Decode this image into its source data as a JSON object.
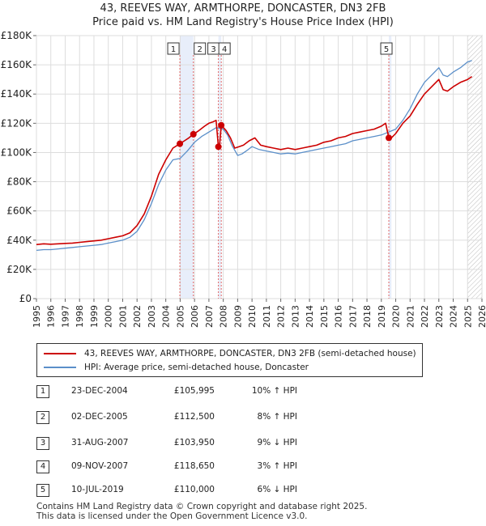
{
  "chart_data": {
    "type": "line",
    "title": "43, REEVES WAY, ARMTHORPE, DONCASTER, DN3 2FB",
    "subtitle": "Price paid vs. HM Land Registry's House Price Index (HPI)",
    "xlabel": "",
    "ylabel": "",
    "xlim": [
      1995,
      2026
    ],
    "ylim": [
      0,
      180000
    ],
    "y_ticks": [
      {
        "value": 0,
        "label": "£0"
      },
      {
        "value": 20000,
        "label": "£20K"
      },
      {
        "value": 40000,
        "label": "£40K"
      },
      {
        "value": 60000,
        "label": "£60K"
      },
      {
        "value": 80000,
        "label": "£80K"
      },
      {
        "value": 100000,
        "label": "£100K"
      },
      {
        "value": 120000,
        "label": "£120K"
      },
      {
        "value": 140000,
        "label": "£140K"
      },
      {
        "value": 160000,
        "label": "£160K"
      },
      {
        "value": 180000,
        "label": "£180K"
      }
    ],
    "x_ticks": [
      "1995",
      "1996",
      "1997",
      "1998",
      "1999",
      "2000",
      "2001",
      "2002",
      "2003",
      "2004",
      "2005",
      "2006",
      "2007",
      "2008",
      "2009",
      "2010",
      "2011",
      "2012",
      "2013",
      "2014",
      "2015",
      "2016",
      "2017",
      "2018",
      "2019",
      "2020",
      "2021",
      "2022",
      "2023",
      "2024",
      "2025",
      "2026"
    ],
    "grid": true,
    "shaded_regions": [
      [
        2004.98,
        2005.92
      ],
      [
        2007.66,
        2007.86
      ],
      [
        2019.52,
        2019.7
      ]
    ],
    "hatched_region": [
      2025.0,
      2026
    ],
    "series": [
      {
        "name": "43, REEVES WAY, ARMTHORPE, DONCASTER, DN3 2FB (semi-detached house)",
        "color": "#cc0000",
        "x": [
          1995.0,
          1995.5,
          1996.0,
          1996.5,
          1997.0,
          1997.5,
          1998.0,
          1998.5,
          1999.0,
          1999.5,
          2000.0,
          2000.5,
          2001.0,
          2001.5,
          2002.0,
          2002.5,
          2003.0,
          2003.5,
          2004.0,
          2004.5,
          2004.98,
          2005.3,
          2005.6,
          2005.92,
          2006.3,
          2006.7,
          2007.0,
          2007.3,
          2007.5,
          2007.66,
          2007.75,
          2007.86,
          2008.2,
          2008.5,
          2008.8,
          2009.1,
          2009.4,
          2009.8,
          2010.2,
          2010.6,
          2011.0,
          2011.5,
          2012.0,
          2012.5,
          2013.0,
          2013.5,
          2014.0,
          2014.5,
          2015.0,
          2015.5,
          2016.0,
          2016.5,
          2017.0,
          2017.5,
          2018.0,
          2018.5,
          2019.0,
          2019.3,
          2019.52,
          2019.7,
          2020.0,
          2020.5,
          2021.0,
          2021.5,
          2022.0,
          2022.5,
          2023.0,
          2023.3,
          2023.6,
          2024.0,
          2024.5,
          2025.0,
          2025.3
        ],
        "values": [
          37000,
          37500,
          37200,
          37500,
          37800,
          38000,
          38500,
          39000,
          39500,
          40000,
          41000,
          42000,
          43000,
          45000,
          50000,
          58000,
          70000,
          85000,
          95000,
          103000,
          105995,
          108000,
          110000,
          112500,
          115000,
          118000,
          120000,
          121000,
          122000,
          103950,
          106000,
          118650,
          115000,
          110000,
          103000,
          104000,
          105000,
          108000,
          110000,
          105000,
          104000,
          103000,
          102000,
          103000,
          102000,
          103000,
          104000,
          105000,
          107000,
          108000,
          110000,
          111000,
          113000,
          114000,
          115000,
          116000,
          118000,
          120000,
          110000,
          110000,
          113000,
          120000,
          125000,
          133000,
          140000,
          145000,
          150000,
          143000,
          142000,
          145000,
          148000,
          150000,
          152000
        ]
      },
      {
        "name": "HPI: Average price, semi-detached house, Doncaster",
        "color": "#5b8fc9",
        "x": [
          1995.0,
          1995.5,
          1996.0,
          1996.5,
          1997.0,
          1997.5,
          1998.0,
          1998.5,
          1999.0,
          1999.5,
          2000.0,
          2000.5,
          2001.0,
          2001.5,
          2002.0,
          2002.5,
          2003.0,
          2003.5,
          2004.0,
          2004.5,
          2005.0,
          2005.5,
          2006.0,
          2006.5,
          2007.0,
          2007.5,
          2008.0,
          2008.3,
          2008.6,
          2009.0,
          2009.3,
          2009.6,
          2010.0,
          2010.5,
          2011.0,
          2011.5,
          2012.0,
          2012.5,
          2013.0,
          2013.5,
          2014.0,
          2014.5,
          2015.0,
          2015.5,
          2016.0,
          2016.5,
          2017.0,
          2017.5,
          2018.0,
          2018.5,
          2019.0,
          2019.5,
          2020.0,
          2020.5,
          2021.0,
          2021.5,
          2022.0,
          2022.5,
          2023.0,
          2023.3,
          2023.6,
          2024.0,
          2024.5,
          2025.0,
          2025.3
        ],
        "values": [
          33000,
          33500,
          33500,
          34000,
          34500,
          35000,
          35500,
          36000,
          36500,
          37000,
          38000,
          39000,
          40000,
          42000,
          46000,
          54000,
          65000,
          78000,
          88000,
          95000,
          96000,
          101000,
          107000,
          111000,
          114000,
          117000,
          116000,
          112000,
          105000,
          98000,
          99000,
          101000,
          104000,
          102000,
          101000,
          100000,
          99000,
          99500,
          99000,
          100000,
          101000,
          102000,
          103000,
          104000,
          105000,
          106000,
          108000,
          109000,
          110000,
          111000,
          112000,
          114000,
          116000,
          122000,
          130000,
          140000,
          148000,
          153000,
          158000,
          153000,
          152000,
          155000,
          158000,
          162000,
          163000
        ]
      }
    ],
    "sales": [
      {
        "n": "1",
        "x": 2004.98,
        "value": 105995
      },
      {
        "n": "2",
        "x": 2005.92,
        "value": 112500
      },
      {
        "n": "3",
        "x": 2007.66,
        "value": 103950
      },
      {
        "n": "4",
        "x": 2007.86,
        "value": 118650
      },
      {
        "n": "5",
        "x": 2019.52,
        "value": 110000
      }
    ]
  },
  "legend": {
    "property_label": "43, REEVES WAY, ARMTHORPE, DONCASTER, DN3 2FB (semi-detached house)",
    "hpi_label": "HPI: Average price, semi-detached house, Doncaster"
  },
  "transactions": [
    {
      "n": "1",
      "date": "23-DEC-2004",
      "price": "£105,995",
      "hpi": "10% ↑ HPI"
    },
    {
      "n": "2",
      "date": "02-DEC-2005",
      "price": "£112,500",
      "hpi": "8% ↑ HPI"
    },
    {
      "n": "3",
      "date": "31-AUG-2007",
      "price": "£103,950",
      "hpi": "9% ↓ HPI"
    },
    {
      "n": "4",
      "date": "09-NOV-2007",
      "price": "£118,650",
      "hpi": "3% ↑ HPI"
    },
    {
      "n": "5",
      "date": "10-JUL-2019",
      "price": "£110,000",
      "hpi": "6% ↓ HPI"
    }
  ],
  "footer": {
    "line1": "Contains HM Land Registry data © Crown copyright and database right 2025.",
    "line2": "This data is licensed under the Open Government Licence v3.0."
  },
  "colors": {
    "property": "#cc0000",
    "hpi": "#5b8fc9",
    "shade": "#e8eefa",
    "grid": "#dddddd"
  }
}
